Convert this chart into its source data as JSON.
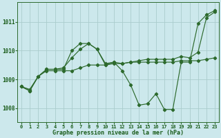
{
  "bg_color": "#cce8ec",
  "grid_color": "#aacccc",
  "line_color": "#2d6a2d",
  "xlabel": "Graphe pression niveau de la mer (hPa)",
  "xlim": [
    -0.5,
    23.5
  ],
  "ylim": [
    1007.5,
    1011.7
  ],
  "yticks": [
    1008,
    1009,
    1010,
    1011
  ],
  "xticks": [
    0,
    1,
    2,
    3,
    4,
    5,
    6,
    7,
    8,
    9,
    10,
    11,
    12,
    13,
    14,
    15,
    16,
    17,
    18,
    19,
    20,
    21,
    22,
    23
  ],
  "font_color": "#1a5c1a",
  "tick_fontsize": 5.0,
  "label_fontsize": 6.0,
  "line1_x": [
    0,
    1,
    2,
    3,
    4,
    5,
    6,
    7,
    8,
    9,
    10,
    11,
    12,
    13,
    14,
    15,
    16,
    17,
    18,
    19,
    20,
    21,
    22,
    23
  ],
  "line1_y": [
    1008.75,
    1008.65,
    1009.1,
    1009.35,
    1009.35,
    1009.4,
    1009.75,
    1010.05,
    1010.25,
    1010.05,
    1009.55,
    1009.6,
    1009.55,
    1009.6,
    1009.65,
    1009.7,
    1009.7,
    1009.7,
    1009.7,
    1009.8,
    1009.75,
    1009.95,
    1011.15,
    1011.35
  ],
  "line2_x": [
    0,
    1,
    2,
    3,
    4,
    5,
    6,
    7,
    8,
    9,
    10,
    11,
    12,
    13,
    14,
    15,
    16,
    17,
    18,
    19,
    20,
    21,
    22,
    23
  ],
  "line2_y": [
    1008.75,
    1008.6,
    1009.1,
    1009.35,
    1009.35,
    1009.35,
    1010.0,
    1010.25,
    1010.25,
    1010.05,
    1009.5,
    1009.6,
    1009.3,
    1008.8,
    1008.1,
    1008.15,
    1008.5,
    1007.95,
    1007.95,
    1009.6,
    1009.6,
    1010.95,
    1011.25,
    1011.4
  ],
  "line3_x": [
    0,
    1,
    2,
    3,
    4,
    5,
    6,
    7,
    8,
    9,
    10,
    11,
    12,
    13,
    14,
    15,
    16,
    17,
    18,
    19,
    20,
    21,
    22,
    23
  ],
  "line3_y": [
    1008.75,
    1008.6,
    1009.1,
    1009.3,
    1009.3,
    1009.3,
    1009.3,
    1009.4,
    1009.5,
    1009.5,
    1009.5,
    1009.55,
    1009.55,
    1009.6,
    1009.6,
    1009.6,
    1009.6,
    1009.6,
    1009.6,
    1009.65,
    1009.65,
    1009.65,
    1009.7,
    1009.75
  ]
}
